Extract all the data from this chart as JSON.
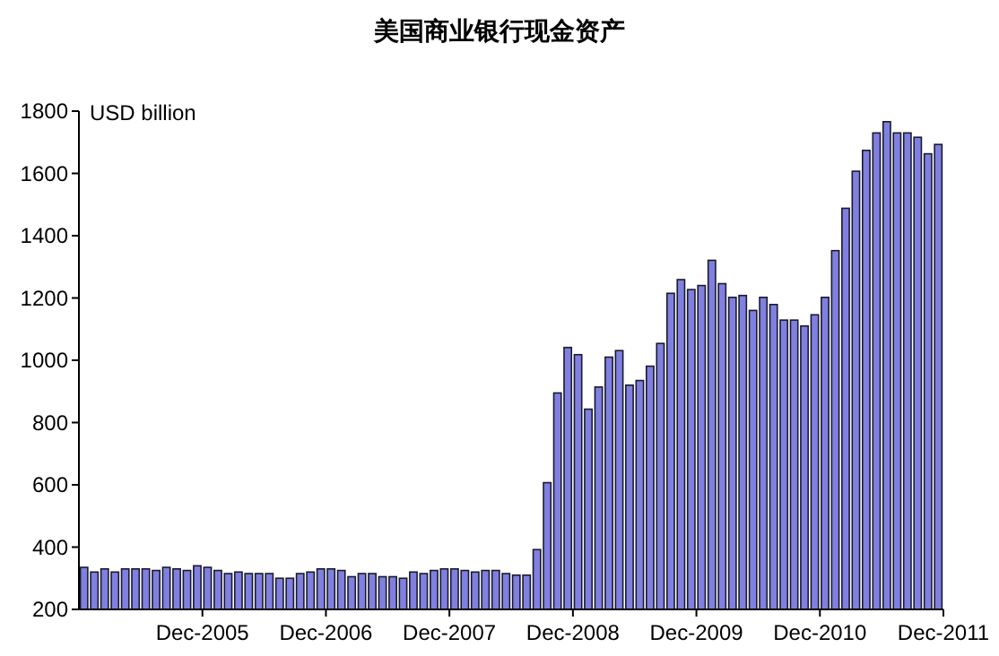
{
  "chart_data": {
    "type": "bar",
    "title": "美国商业银行现金资产",
    "annotations": [
      "USD billion"
    ],
    "categories": [
      null,
      null,
      null,
      null,
      null,
      null,
      null,
      null,
      null,
      null,
      null,
      "Dec-2005",
      null,
      null,
      null,
      null,
      null,
      null,
      null,
      null,
      null,
      null,
      null,
      "Dec-2006",
      null,
      null,
      null,
      null,
      null,
      null,
      null,
      null,
      null,
      null,
      null,
      "Dec-2007",
      null,
      null,
      null,
      null,
      null,
      null,
      null,
      null,
      null,
      null,
      null,
      "Dec-2008",
      null,
      null,
      null,
      null,
      null,
      null,
      null,
      null,
      null,
      null,
      null,
      "Dec-2009",
      null,
      null,
      null,
      null,
      null,
      null,
      null,
      null,
      null,
      null,
      null,
      "Dec-2010",
      null,
      null,
      null,
      null,
      null,
      null,
      null,
      null,
      null,
      null,
      null,
      "Dec-2011"
    ],
    "values": [
      335,
      320,
      330,
      320,
      330,
      330,
      330,
      325,
      335,
      330,
      325,
      340,
      335,
      325,
      315,
      320,
      315,
      315,
      315,
      300,
      300,
      315,
      320,
      330,
      330,
      325,
      305,
      315,
      315,
      305,
      305,
      300,
      320,
      315,
      325,
      330,
      330,
      325,
      320,
      325,
      325,
      315,
      310,
      310,
      392,
      607,
      895,
      1041,
      1018,
      843,
      914,
      1010,
      1031,
      920,
      935,
      981,
      1054,
      1215,
      1259,
      1227,
      1240,
      1321,
      1246,
      1202,
      1208,
      1160,
      1202,
      1179,
      1129,
      1129,
      1110,
      1146,
      1202,
      1352,
      1488,
      1607,
      1674,
      1730,
      1766,
      1730,
      1730,
      1716,
      1663,
      1693
    ],
    "color": "#8080e0",
    "ylim": [
      200,
      1800
    ],
    "yticks": [
      200,
      400,
      600,
      800,
      1000,
      1200,
      1400,
      1600,
      1800
    ],
    "grid": false
  }
}
